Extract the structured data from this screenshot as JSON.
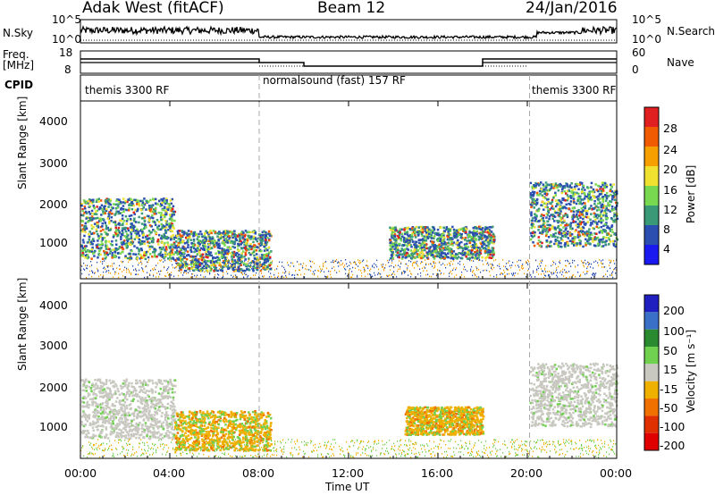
{
  "header": {
    "station": "Adak West (fitACF)",
    "beam": "Beam 12",
    "date": "24/Jan/2016"
  },
  "panels": {
    "nsky": {
      "label": "N.Sky",
      "tick_top": "10^5",
      "tick_bottom": "10^0"
    },
    "freq": {
      "label_line1": "Freq.",
      "label_line2": "[MHz]",
      "tick_top": "18",
      "tick_bottom": "8"
    },
    "nsearch": {
      "label": "N.Search",
      "tick_top": "10^5",
      "tick_bottom": "10^0"
    },
    "nave": {
      "label": "Nave",
      "tick_top": "60",
      "tick_bottom": "0"
    },
    "cpid": {
      "label": "CPID",
      "segments": [
        "themis 3300 RF",
        "normalsound (fast) 157 RF",
        "themis 3300 RF"
      ]
    }
  },
  "axes": {
    "ylabel": "Slant Range [km]",
    "yticks": [
      "4000",
      "3000",
      "2000",
      "1000"
    ],
    "xticks": [
      "00:00",
      "04:00",
      "08:00",
      "12:00",
      "16:00",
      "20:00",
      "00:00"
    ],
    "xlabel": "Time UT"
  },
  "colorbars": {
    "power": {
      "label": "Power [dB]",
      "ticks": [
        "28",
        "24",
        "20",
        "16",
        "12",
        "8",
        "4"
      ],
      "colors": [
        "#e02020",
        "#f05a00",
        "#f5a000",
        "#f0e030",
        "#78d850",
        "#3a9a78",
        "#2a4fb0",
        "#1a1af0"
      ]
    },
    "velocity": {
      "label": "Velocity [m s⁻¹]",
      "ticks": [
        "200",
        "100",
        "50",
        "15",
        "-15",
        "-50",
        "-100",
        "-200"
      ],
      "colors": [
        "#2020c0",
        "#3a70c8",
        "#2a8a30",
        "#70d050",
        "#c8c8c0",
        "#f0b000",
        "#f07000",
        "#e03000",
        "#e00000"
      ]
    }
  },
  "chart_data": [
    {
      "type": "heatmap",
      "title": "Power",
      "x_range_hours": [
        0,
        24
      ],
      "y_range_km": [
        180,
        4600
      ],
      "x": [
        0,
        1,
        2,
        3,
        4,
        5,
        6,
        7,
        8,
        12,
        14,
        15,
        16,
        17,
        18,
        20,
        21,
        22,
        23,
        24
      ],
      "echo_bands": [
        {
          "t_start": 0,
          "t_end": 4.2,
          "range_km": [
            700,
            2200
          ],
          "peak_power_db": 24
        },
        {
          "t_start": 4.2,
          "t_end": 8.5,
          "range_km": [
            400,
            1400
          ],
          "peak_power_db": 20
        },
        {
          "t_start": 13.8,
          "t_end": 18.5,
          "range_km": [
            700,
            1500
          ],
          "peak_power_db": 16
        },
        {
          "t_start": 20.1,
          "t_end": 24,
          "range_km": [
            1000,
            2600
          ],
          "peak_power_db": 24
        }
      ]
    },
    {
      "type": "heatmap",
      "title": "Velocity",
      "x_range_hours": [
        0,
        24
      ],
      "y_range_km": [
        180,
        4600
      ],
      "echo_bands": [
        {
          "t_start": 0,
          "t_end": 4.2,
          "range_km": [
            700,
            2200
          ],
          "velocity_ms": 0
        },
        {
          "t_start": 4.2,
          "t_end": 8.5,
          "range_km": [
            400,
            1400
          ],
          "velocity_ms": -15
        },
        {
          "t_start": 14.5,
          "t_end": 18.0,
          "range_km": [
            800,
            1500
          ],
          "velocity_ms": -50
        },
        {
          "t_start": 20.1,
          "t_end": 24,
          "range_km": [
            1000,
            2600
          ],
          "velocity_ms": 0
        }
      ]
    }
  ]
}
